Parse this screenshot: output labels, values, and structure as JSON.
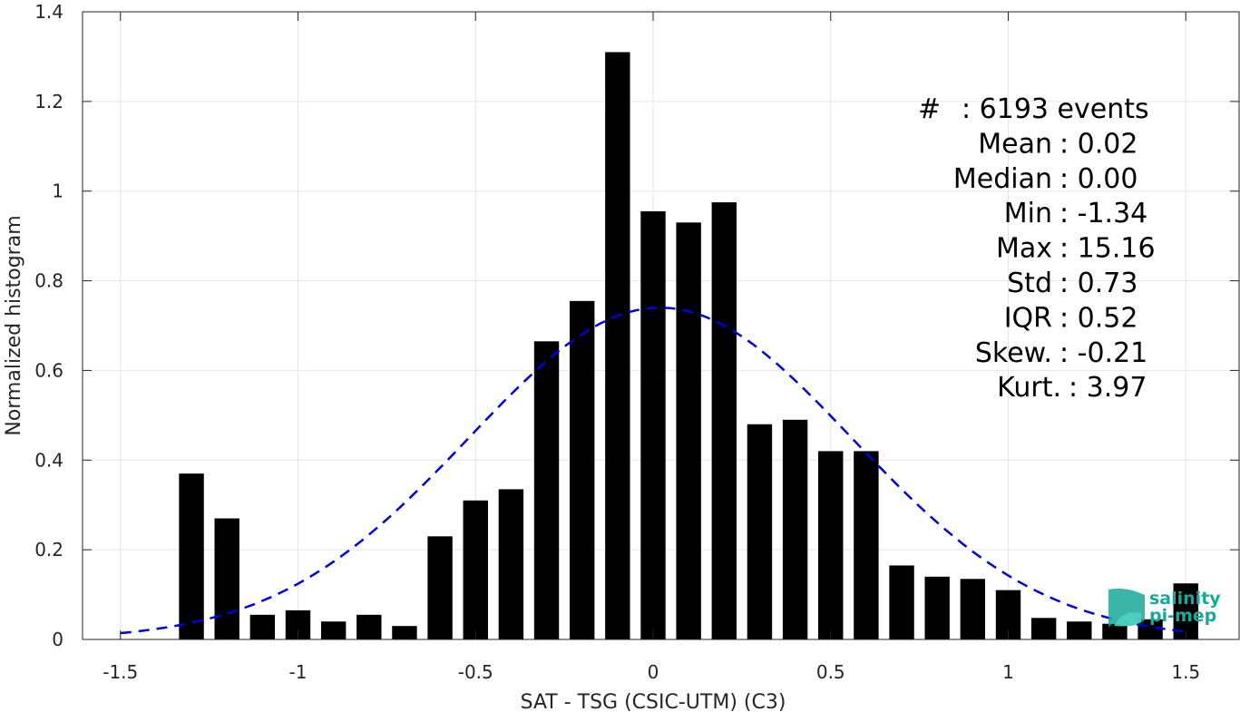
{
  "chart_data": {
    "type": "bar",
    "xlabel": "SAT - TSG (CSIC-UTM) (C3)",
    "ylabel": "Normalized histogram",
    "xlim": [
      -1.5,
      1.5
    ],
    "ylim": [
      0,
      1.4
    ],
    "xticks": [
      "-1.5",
      "-1",
      "-0.5",
      "0",
      "0.5",
      "1",
      "1.5"
    ],
    "yticks": [
      "0",
      "0.2",
      "0.4",
      "0.6",
      "0.8",
      "1",
      "1.2",
      "1.4"
    ],
    "grid": true,
    "bin_centers": [
      -1.3,
      -1.2,
      -1.1,
      -1.0,
      -0.9,
      -0.8,
      -0.7,
      -0.6,
      -0.5,
      -0.4,
      -0.3,
      -0.2,
      -0.1,
      0.0,
      0.1,
      0.2,
      0.3,
      0.4,
      0.5,
      0.6,
      0.7,
      0.8,
      0.9,
      1.0,
      1.1,
      1.2,
      1.3,
      1.4,
      1.5
    ],
    "values": [
      0.37,
      0.27,
      0.055,
      0.065,
      0.04,
      0.055,
      0.03,
      0.23,
      0.31,
      0.335,
      0.665,
      0.755,
      1.31,
      0.955,
      0.93,
      0.975,
      0.48,
      0.49,
      0.42,
      0.42,
      0.165,
      0.14,
      0.135,
      0.11,
      0.048,
      0.04,
      0.035,
      0.045,
      0.125
    ],
    "bar_color": "#000000",
    "fit_curve": {
      "type": "gaussian",
      "style": "dashed",
      "color": "#0000dd",
      "mean": 0.02,
      "std": 0.54,
      "peak": 0.74,
      "x_range": [
        -1.5,
        1.5
      ]
    },
    "stats": [
      {
        "label": "#",
        "value": "6193 events"
      },
      {
        "label": "Mean",
        "value": "0.02"
      },
      {
        "label": "Median",
        "value": "0.00"
      },
      {
        "label": "Min",
        "value": "-1.34"
      },
      {
        "label": "Max",
        "value": "15.16"
      },
      {
        "label": "Std",
        "value": "0.73"
      },
      {
        "label": "IQR",
        "value": "0.52"
      },
      {
        "label": "Skew.",
        "value": "-0.21"
      },
      {
        "label": "Kurt.",
        "value": "3.97"
      }
    ]
  },
  "logo": {
    "line1": "salinity",
    "line2": "pi-mep",
    "color": "#1aa89a"
  }
}
